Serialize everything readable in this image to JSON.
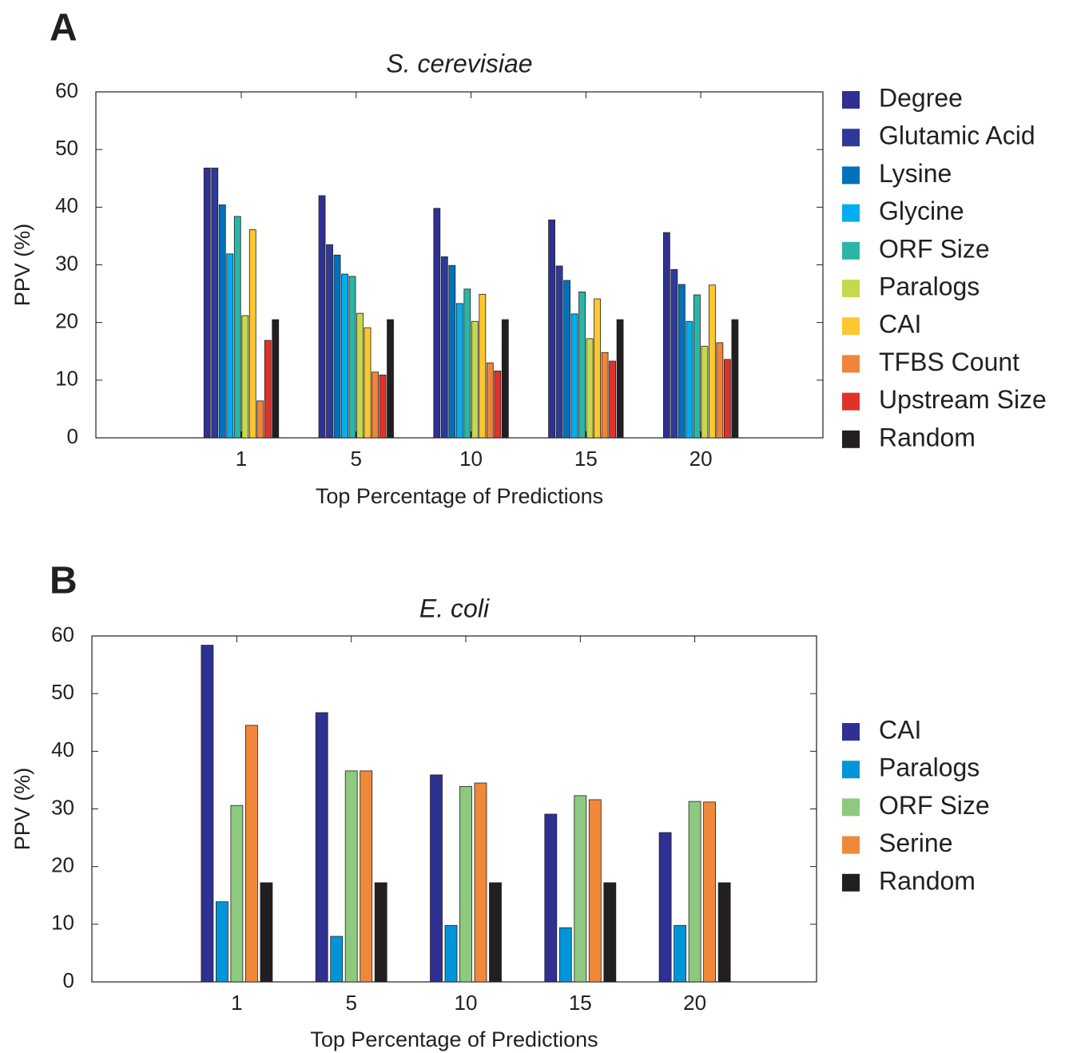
{
  "chart_data": [
    {
      "type": "bar",
      "panel": "A",
      "title": "S. cerevisiae",
      "xlabel": "Top Percentage of Predictions",
      "ylabel": "PPV (%)",
      "categories": [
        "1",
        "5",
        "10",
        "15",
        "20"
      ],
      "ylim": [
        0,
        60
      ],
      "yticks": [
        0,
        10,
        20,
        30,
        40,
        50,
        60
      ],
      "series": [
        {
          "name": "Degree",
          "color": "#2e3192",
          "values": [
            46.8,
            42.0,
            39.8,
            37.8,
            35.6
          ]
        },
        {
          "name": "Glutamic Acid",
          "color": "#2e3a98",
          "values": [
            46.8,
            33.5,
            31.4,
            29.8,
            29.2
          ]
        },
        {
          "name": "Lysine",
          "color": "#0072bc",
          "values": [
            40.4,
            31.7,
            29.9,
            27.3,
            26.6
          ]
        },
        {
          "name": "Glycine",
          "color": "#00aeef",
          "values": [
            31.9,
            28.4,
            23.3,
            21.5,
            20.2
          ]
        },
        {
          "name": "ORF Size",
          "color": "#2bb5a6",
          "values": [
            38.4,
            28.0,
            25.8,
            25.3,
            24.8
          ]
        },
        {
          "name": "Paralogs",
          "color": "#c6d84c",
          "values": [
            21.2,
            21.6,
            20.2,
            17.2,
            15.9
          ]
        },
        {
          "name": "CAI",
          "color": "#fdc82f",
          "values": [
            36.1,
            19.1,
            24.9,
            24.1,
            26.5
          ]
        },
        {
          "name": "TFBS Count",
          "color": "#f0843a",
          "values": [
            6.4,
            11.4,
            13.0,
            14.8,
            16.5
          ]
        },
        {
          "name": "Upstream Size",
          "color": "#e0322b",
          "values": [
            16.9,
            10.9,
            11.6,
            13.3,
            13.6
          ]
        },
        {
          "name": "Random",
          "color": "#231f20",
          "values": [
            20.5,
            20.5,
            20.5,
            20.5,
            20.5
          ]
        }
      ]
    },
    {
      "type": "bar",
      "panel": "B",
      "title": "E. coli",
      "xlabel": "Top Percentage of Predictions",
      "ylabel": "PPV (%)",
      "categories": [
        "1",
        "5",
        "10",
        "15",
        "20"
      ],
      "ylim": [
        0,
        60
      ],
      "yticks": [
        0,
        10,
        20,
        30,
        40,
        50,
        60
      ],
      "series": [
        {
          "name": "CAI",
          "color": "#2e3192",
          "values": [
            58.4,
            46.7,
            35.9,
            29.1,
            25.9
          ]
        },
        {
          "name": "Paralogs",
          "color": "#0095d9",
          "values": [
            13.9,
            7.9,
            9.8,
            9.4,
            9.8
          ]
        },
        {
          "name": "ORF Size",
          "color": "#8dc97f",
          "values": [
            30.6,
            36.6,
            33.9,
            32.3,
            31.3
          ]
        },
        {
          "name": "Serine",
          "color": "#f0883a",
          "values": [
            44.5,
            36.6,
            34.5,
            31.6,
            31.2
          ]
        },
        {
          "name": "Random",
          "color": "#231f20",
          "values": [
            17.2,
            17.2,
            17.2,
            17.2,
            17.2
          ]
        }
      ]
    }
  ]
}
